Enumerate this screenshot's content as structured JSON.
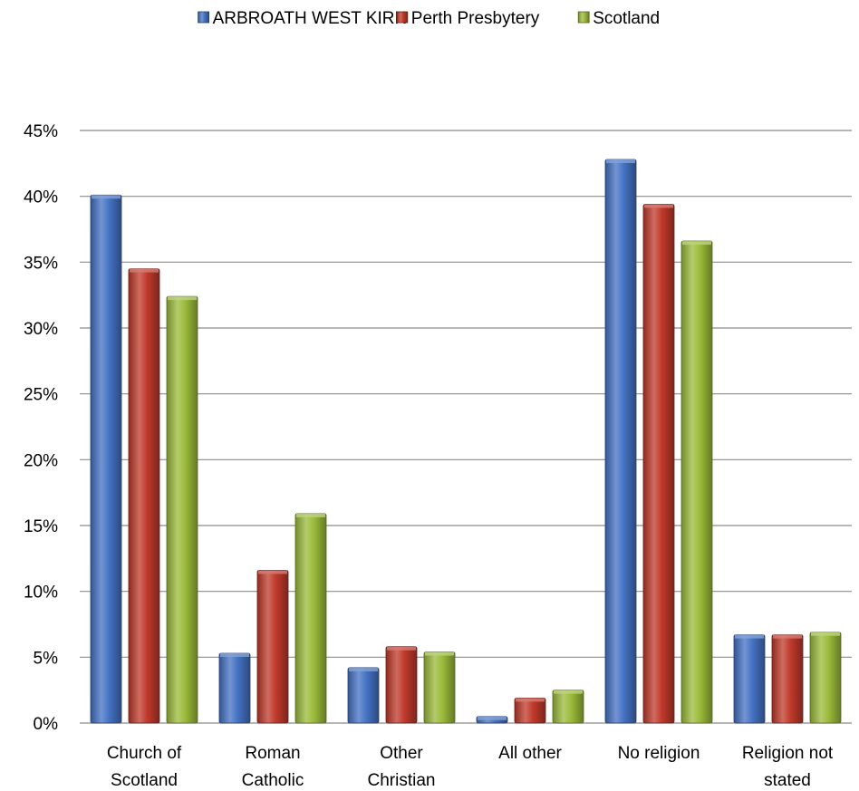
{
  "chart_data": {
    "type": "bar",
    "categories": [
      [
        "Church of",
        "Scotland"
      ],
      [
        "Roman",
        "Catholic"
      ],
      [
        "Other",
        "Christian"
      ],
      [
        "All other"
      ],
      [
        "No religion"
      ],
      [
        "Religion not",
        "stated"
      ]
    ],
    "series": [
      {
        "name": "ARBROATH WEST KIRK",
        "color": "#4472c4",
        "values": [
          40.1,
          5.3,
          4.2,
          0.5,
          42.8,
          6.7
        ]
      },
      {
        "name": "Perth Presbytery",
        "color": "#c0392b",
        "values": [
          34.5,
          11.6,
          5.8,
          1.9,
          39.4,
          6.7
        ]
      },
      {
        "name": "Scotland",
        "color": "#9bbb3a",
        "values": [
          32.4,
          15.9,
          5.4,
          2.5,
          36.6,
          6.9
        ]
      }
    ],
    "ylim": [
      0,
      45
    ],
    "yticks": [
      "0%",
      "5%",
      "10%",
      "15%",
      "20%",
      "25%",
      "30%",
      "35%",
      "40%",
      "45%"
    ],
    "ytick_values": [
      0,
      5,
      10,
      15,
      20,
      25,
      30,
      35,
      40,
      45
    ],
    "grid": true,
    "legend_position": "top-center"
  }
}
